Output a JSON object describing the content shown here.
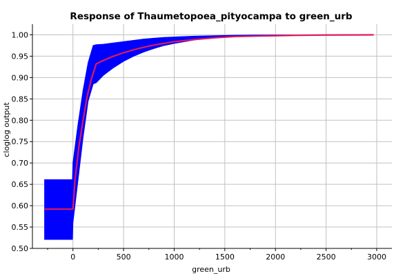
{
  "chart_data": {
    "type": "line",
    "title": "Response of Thaumetopoea_pityocampa to green_urb",
    "xlabel": "green_urb",
    "ylabel": "cloglog output",
    "xlim": [
      -400,
      3150
    ],
    "ylim": [
      0.5,
      1.025
    ],
    "x_ticks": [
      0,
      500,
      1000,
      1500,
      2000,
      2500,
      3000
    ],
    "x_tick_labels": [
      "0",
      "500",
      "1000",
      "1500",
      "2000",
      "2500",
      "3000"
    ],
    "y_ticks": [
      0.5,
      0.55,
      0.6,
      0.65,
      0.7,
      0.75,
      0.8,
      0.85,
      0.9,
      0.95,
      1.0
    ],
    "y_tick_labels": [
      "0.50",
      "0.55",
      "0.60",
      "0.65",
      "0.70",
      "0.75",
      "0.80",
      "0.85",
      "0.90",
      "0.95",
      "1.00"
    ],
    "grid": true,
    "colors": {
      "band": "#0000ff",
      "mean": "#e0195a",
      "grid": "#c0c0c0"
    },
    "band": {
      "x": [
        -280,
        -5,
        0,
        50,
        100,
        150,
        200,
        230,
        300,
        400,
        500,
        600,
        700,
        800,
        900,
        1000,
        1200,
        1400,
        1600,
        1800,
        2000,
        2200,
        2500,
        2800,
        2970
      ],
      "upper": [
        0.661,
        0.661,
        0.7,
        0.79,
        0.87,
        0.935,
        0.975,
        0.977,
        0.978,
        0.981,
        0.984,
        0.987,
        0.99,
        0.992,
        0.994,
        0.995,
        0.997,
        0.998,
        0.999,
        0.9995,
        0.9998,
        0.9999,
        1.0,
        1.0,
        1.0
      ],
      "lower": [
        0.521,
        0.521,
        0.56,
        0.66,
        0.76,
        0.845,
        0.885,
        0.888,
        0.905,
        0.923,
        0.938,
        0.95,
        0.96,
        0.968,
        0.975,
        0.98,
        0.988,
        0.993,
        0.996,
        0.998,
        0.999,
        0.9995,
        0.9998,
        0.9999,
        1.0
      ]
    },
    "series": [
      {
        "x": [
          -280,
          0,
          20,
          60,
          100,
          140,
          180,
          230,
          300,
          400,
          500,
          600,
          700,
          800,
          900,
          1000,
          1200,
          1400,
          1600,
          1800,
          2000,
          2200,
          2500,
          2800,
          2970
        ],
        "values": [
          0.592,
          0.592,
          0.66,
          0.74,
          0.8,
          0.855,
          0.895,
          0.932,
          0.94,
          0.95,
          0.958,
          0.965,
          0.971,
          0.976,
          0.98,
          0.984,
          0.989,
          0.993,
          0.996,
          0.997,
          0.998,
          0.999,
          0.9995,
          0.9998,
          1.0
        ]
      }
    ]
  }
}
